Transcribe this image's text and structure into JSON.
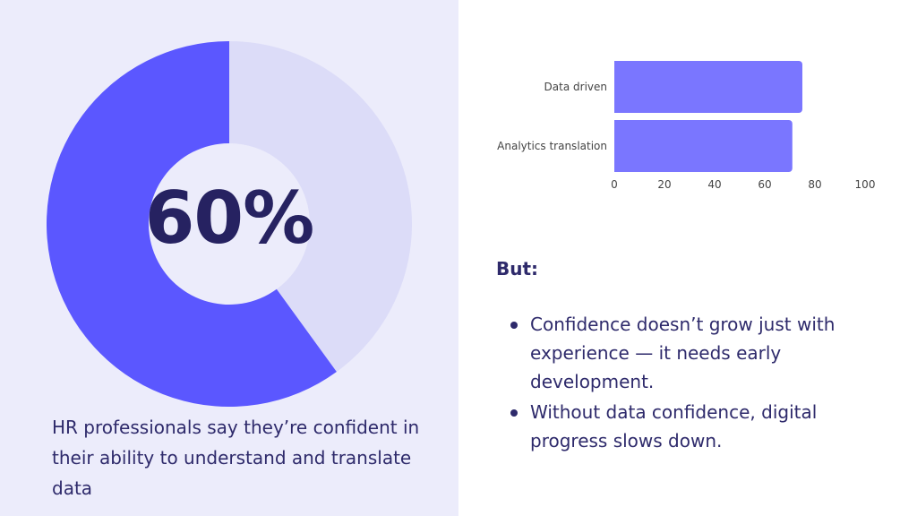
{
  "colors": {
    "panel": "#ececfb",
    "donut_primary": "#5b57ff",
    "donut_secondary": "#dcdcf8",
    "bar": "#7a76ff",
    "text_dark": "#2e2a6b",
    "text_axis": "#444444"
  },
  "highlight": {
    "value_label": "60%",
    "caption": "HR professionals say they’re confident in their ability to understand and translate data"
  },
  "chart_data": [
    {
      "type": "pie",
      "variant": "donut",
      "center_label": "60%",
      "slices": [
        {
          "value": 60,
          "color": "#5b57ff"
        },
        {
          "value": 40,
          "color": "#dcdcf8"
        }
      ]
    },
    {
      "type": "bar",
      "orientation": "horizontal",
      "categories": [
        "Data driven",
        "Analytics translation"
      ],
      "values": [
        75,
        71
      ],
      "xlim": [
        0,
        100
      ],
      "xticks": [
        "0",
        "20",
        "40",
        "60",
        "80",
        "100"
      ],
      "grid": false,
      "color": "#7a76ff"
    }
  ],
  "notes": {
    "title": "But:",
    "bullets": [
      "Confidence doesn’t grow just with experience — it needs early development.",
      "Without data confidence, digital progress slows down."
    ]
  }
}
